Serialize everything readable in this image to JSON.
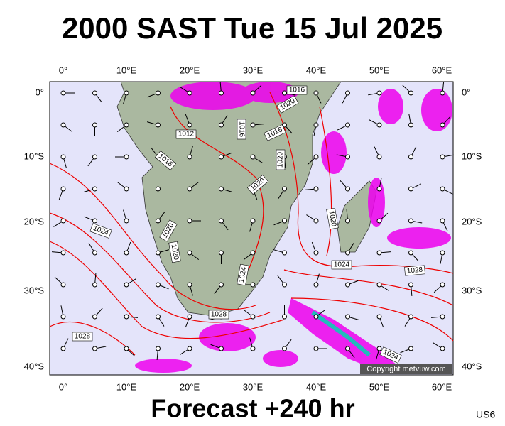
{
  "header": {
    "title": "2000 SAST Tue 15 Jul 2025"
  },
  "map": {
    "longitude_labels": [
      "0°",
      "10°E",
      "20°E",
      "30°E",
      "40°E",
      "50°E",
      "60°E"
    ],
    "latitude_labels": [
      "0°",
      "10°S",
      "20°S",
      "30°S",
      "40°S"
    ],
    "contour_labels": [
      "1016",
      "1020",
      "1012",
      "1016",
      "1016",
      "1016",
      "1020",
      "1020",
      "1024",
      "1020",
      "1020",
      "1020",
      "1024",
      "1028",
      "1024",
      "1028",
      "1028",
      "1024"
    ],
    "copyright": "Copyright metvuw.com"
  },
  "footer": {
    "forecast": "Forecast +240 hr",
    "code": "US6"
  }
}
